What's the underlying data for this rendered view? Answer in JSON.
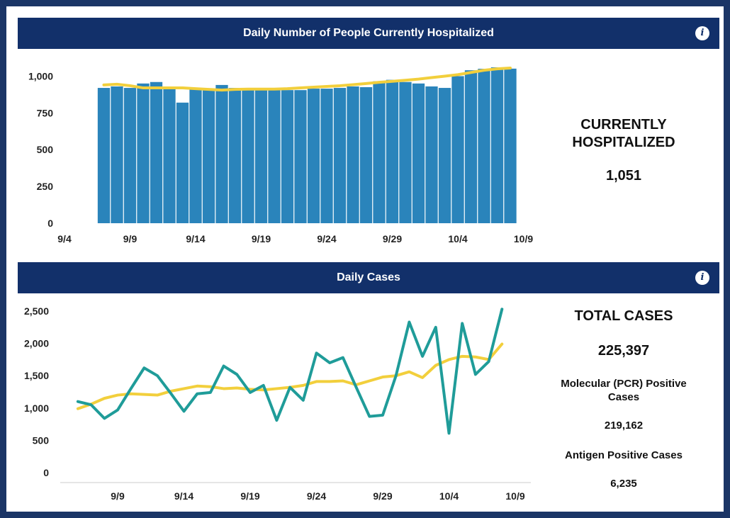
{
  "hosp_panel": {
    "title": "Daily Number of People Currently Hospitalized",
    "info_label": "i",
    "stat_title_line1": "CURRENTLY",
    "stat_title_line2": "HOSPITALIZED",
    "stat_value": "1,051"
  },
  "cases_panel": {
    "title": "Daily Cases",
    "info_label": "i",
    "total_title": "TOTAL CASES",
    "total_value": "225,397",
    "pcr_label_line1": "Molecular (PCR) Positive",
    "pcr_label_line2": "Cases",
    "pcr_value": "219,162",
    "antigen_label": "Antigen Positive Cases",
    "antigen_value": "6,235"
  },
  "colors": {
    "header": "#12306a",
    "frame": "#1b3566",
    "bar": "#2a84bb",
    "avg_line": "#f2cf3c",
    "cases_line": "#1f9c99"
  },
  "chart_data": [
    {
      "type": "bar",
      "x_start_day": 7,
      "x": [
        "9/7",
        "9/8",
        "9/9",
        "9/10",
        "9/11",
        "9/12",
        "9/13",
        "9/14",
        "9/15",
        "9/16",
        "9/17",
        "9/18",
        "9/19",
        "9/20",
        "9/21",
        "9/22",
        "9/23",
        "9/24",
        "9/25",
        "9/26",
        "9/27",
        "9/28",
        "9/29",
        "9/30",
        "10/1",
        "10/2",
        "10/3",
        "10/4",
        "10/5",
        "10/6",
        "10/7",
        "10/8"
      ],
      "values": [
        920,
        930,
        920,
        950,
        960,
        920,
        820,
        920,
        910,
        940,
        920,
        910,
        910,
        910,
        905,
        905,
        915,
        915,
        920,
        930,
        925,
        965,
        975,
        960,
        950,
        930,
        920,
        1000,
        1040,
        1050,
        1060,
        1051
      ],
      "avg_series": [
        940,
        945,
        935,
        920,
        920,
        920,
        920,
        915,
        910,
        905,
        910,
        912,
        912,
        912,
        915,
        920,
        925,
        930,
        935,
        942,
        950,
        958,
        965,
        972,
        980,
        990,
        1000,
        1010,
        1025,
        1040,
        1050,
        1055
      ],
      "xticks": [
        "9/4",
        "9/9",
        "9/14",
        "9/19",
        "9/24",
        "9/29",
        "10/4",
        "10/9"
      ],
      "yticks": [
        "0",
        "250",
        "500",
        "750",
        "1,000"
      ],
      "ylim": [
        0,
        1060
      ]
    },
    {
      "type": "line",
      "x_start_day": 6,
      "series": [
        {
          "values": [
            1100,
            1050,
            840,
            970,
            1300,
            1620,
            1500,
            1230,
            950,
            1220,
            1240,
            1650,
            1520,
            1240,
            1350,
            810,
            1320,
            1120,
            1850,
            1700,
            1780,
            1320,
            870,
            890,
            1500,
            2330,
            1800,
            2250,
            610,
            2310,
            1520,
            1720,
            2530
          ]
        },
        {
          "values": [
            990,
            1060,
            1150,
            1200,
            1220,
            1210,
            1200,
            1260,
            1300,
            1340,
            1330,
            1300,
            1310,
            1290,
            1280,
            1300,
            1320,
            1350,
            1410,
            1410,
            1420,
            1360,
            1420,
            1480,
            1500,
            1560,
            1470,
            1660,
            1750,
            1800,
            1790,
            1750,
            1990
          ]
        }
      ],
      "xticks": [
        "9/9",
        "9/14",
        "9/19",
        "9/24",
        "9/29",
        "10/4",
        "10/9"
      ],
      "yticks": [
        "0",
        "500",
        "1,000",
        "1,500",
        "2,000",
        "2,500"
      ],
      "ylim": [
        0,
        2500
      ]
    }
  ]
}
